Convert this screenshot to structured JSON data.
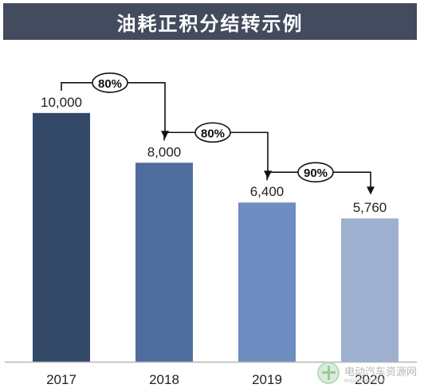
{
  "title": "油耗正积分结转示例",
  "colors": {
    "title_bg": "#434c5e",
    "bars": [
      "#344868",
      "#4e6d9e",
      "#6e8dc0",
      "#9eb0d0"
    ]
  },
  "chart_data": {
    "type": "bar",
    "title": "油耗正积分结转示例",
    "categories": [
      "2017",
      "2018",
      "2019",
      "2020"
    ],
    "values": [
      10000,
      8000,
      6400,
      5760
    ],
    "value_labels": [
      "10,000",
      "8,000",
      "6,400",
      "5,760"
    ],
    "ylim": [
      0,
      11500
    ],
    "grid": false,
    "annotations": [
      {
        "from": "2017",
        "to": "2018",
        "label": "80%"
      },
      {
        "from": "2018",
        "to": "2019",
        "label": "80%"
      },
      {
        "from": "2019",
        "to": "2020",
        "label": "90%"
      }
    ]
  },
  "watermark": {
    "name": "电动汽车资源网",
    "url": "evpartner.com"
  }
}
